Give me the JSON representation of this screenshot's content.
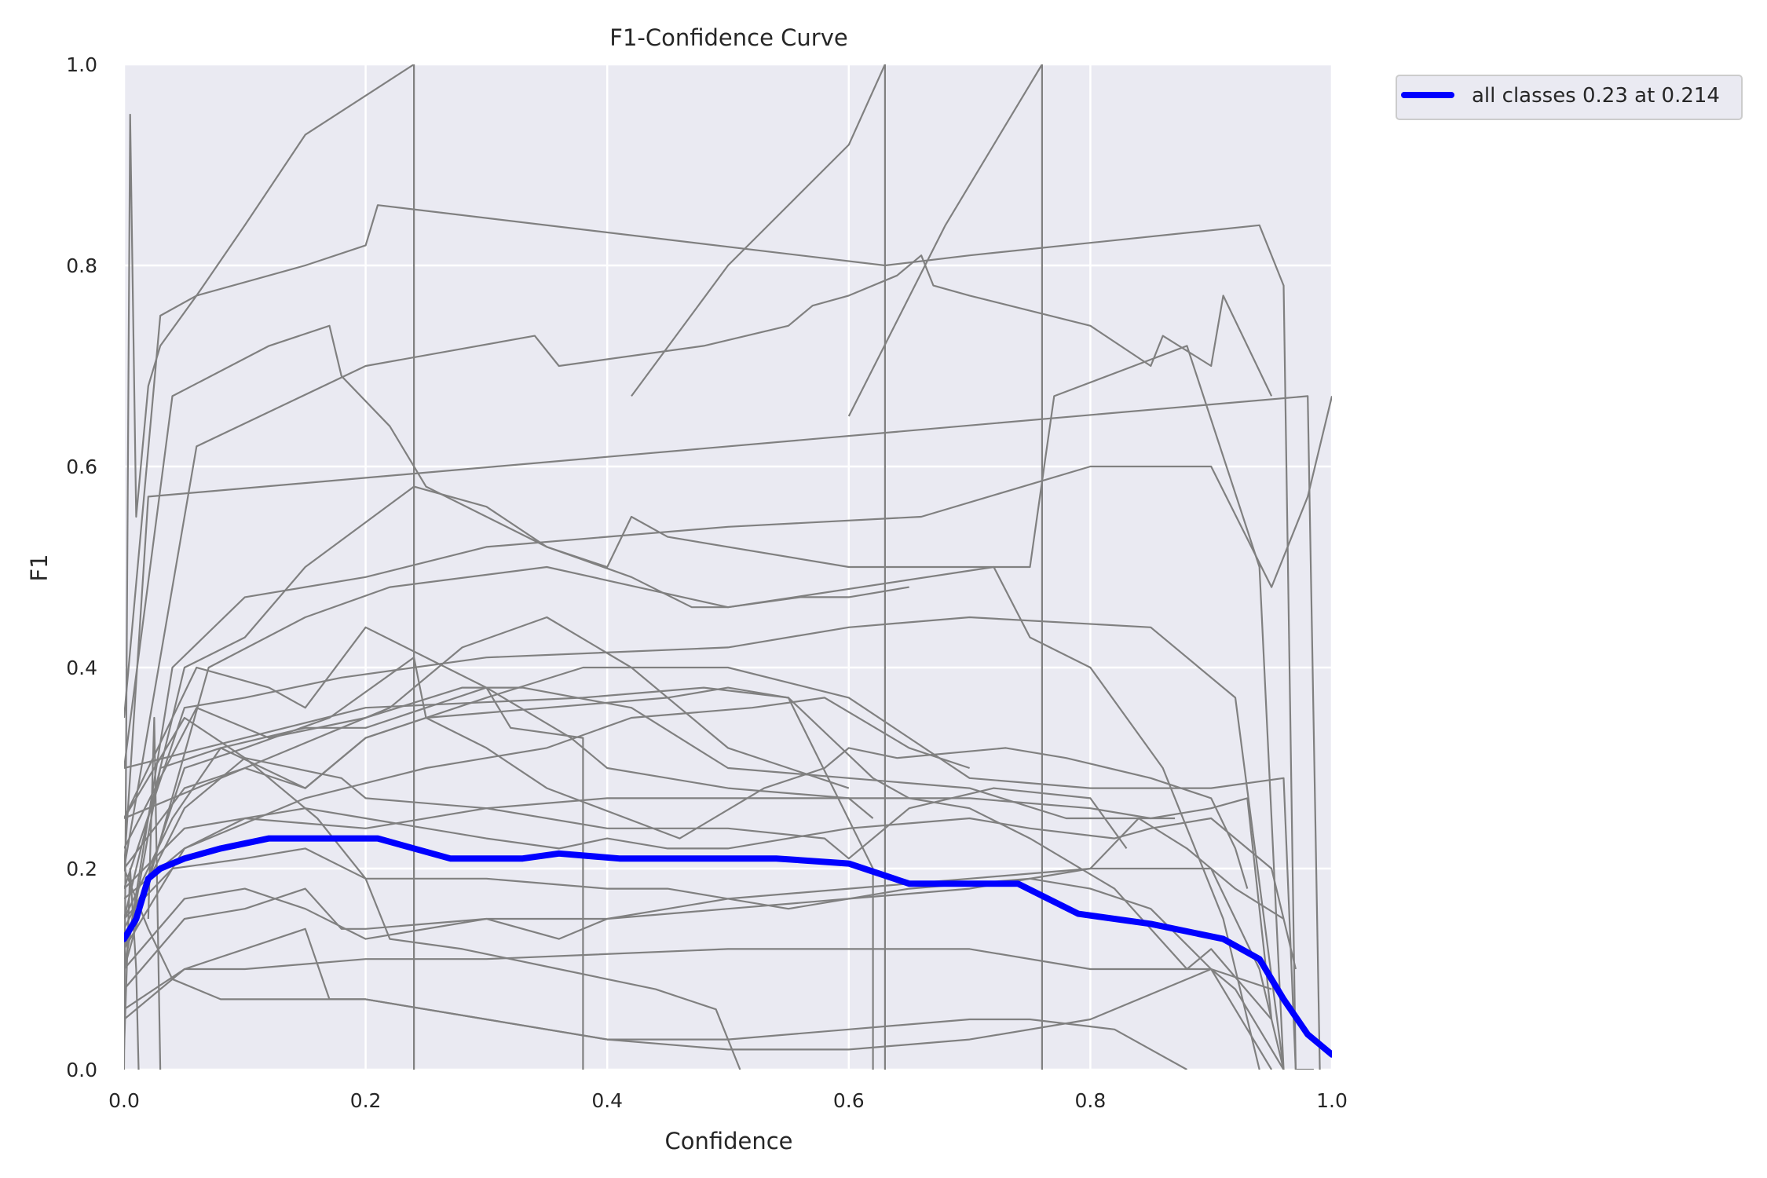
{
  "chart_data": {
    "type": "line",
    "title": "F1-Confidence Curve",
    "xlabel": "Confidence",
    "ylabel": "F1",
    "xlim": [
      0.0,
      1.0
    ],
    "ylim": [
      0.0,
      1.0
    ],
    "x_ticks": [
      "0.0",
      "0.2",
      "0.4",
      "0.6",
      "0.8",
      "1.0"
    ],
    "y_ticks": [
      "0.0",
      "0.2",
      "0.4",
      "0.6",
      "0.8",
      "1.0"
    ],
    "grid": true,
    "legend_position": "outside-top-right",
    "colors": {
      "class_curves": "#808080",
      "all_classes": "#0000ff",
      "plot_background": "#eaeaf2",
      "grid": "#ffffff"
    },
    "series": [
      {
        "name": "all classes 0.23 at 0.214",
        "emphasis": true,
        "x": [
          0.0,
          0.01,
          0.02,
          0.03,
          0.05,
          0.08,
          0.12,
          0.15,
          0.21,
          0.27,
          0.33,
          0.36,
          0.41,
          0.46,
          0.51,
          0.54,
          0.6,
          0.65,
          0.7,
          0.74,
          0.79,
          0.85,
          0.91,
          0.94,
          0.96,
          0.98,
          1.0
        ],
        "values": [
          0.13,
          0.15,
          0.19,
          0.2,
          0.21,
          0.22,
          0.23,
          0.23,
          0.23,
          0.21,
          0.21,
          0.215,
          0.21,
          0.21,
          0.21,
          0.21,
          0.205,
          0.185,
          0.185,
          0.185,
          0.155,
          0.145,
          0.13,
          0.11,
          0.07,
          0.035,
          0.015
        ]
      },
      {
        "x": [
          0.0,
          0.005,
          0.01,
          0.02,
          0.03,
          0.06,
          0.1,
          0.15,
          0.24
        ],
        "values": [
          0.0,
          0.95,
          0.55,
          0.68,
          0.72,
          0.77,
          0.84,
          0.93,
          1.0
        ]
      },
      {
        "x": [
          0.24,
          0.24
        ],
        "values": [
          1.0,
          0.0
        ]
      },
      {
        "x": [
          0.0,
          0.03,
          0.06,
          0.15,
          0.2,
          0.21,
          0.63,
          0.7,
          0.94,
          0.96,
          0.97,
          0.985
        ],
        "values": [
          0.35,
          0.75,
          0.77,
          0.8,
          0.82,
          0.86,
          0.8,
          0.81,
          0.84,
          0.78,
          0.0,
          0.0
        ]
      },
      {
        "x": [
          0.0,
          0.04,
          0.12,
          0.17,
          0.18,
          0.22,
          0.25,
          0.3,
          0.35,
          0.42,
          0.47,
          0.5,
          0.56,
          0.6,
          0.65
        ],
        "values": [
          0.3,
          0.67,
          0.72,
          0.74,
          0.69,
          0.64,
          0.58,
          0.55,
          0.52,
          0.49,
          0.46,
          0.46,
          0.47,
          0.47,
          0.48
        ]
      },
      {
        "x": [
          0.0,
          0.06,
          0.2,
          0.34,
          0.36,
          0.48,
          0.55,
          0.57,
          0.6,
          0.64,
          0.66,
          0.67,
          0.7,
          0.8,
          0.85,
          0.86,
          0.9,
          0.91,
          0.95
        ],
        "values": [
          0.2,
          0.62,
          0.7,
          0.73,
          0.7,
          0.72,
          0.74,
          0.76,
          0.77,
          0.79,
          0.81,
          0.78,
          0.77,
          0.74,
          0.7,
          0.73,
          0.7,
          0.77,
          0.67
        ]
      },
      {
        "x": [
          0.42,
          0.5,
          0.6,
          0.63
        ],
        "values": [
          0.67,
          0.8,
          0.92,
          1.0
        ]
      },
      {
        "x": [
          0.63,
          0.63
        ],
        "values": [
          1.0,
          0.0
        ]
      },
      {
        "x": [
          0.6,
          0.68,
          0.76
        ],
        "values": [
          0.65,
          0.84,
          1.0
        ]
      },
      {
        "x": [
          0.76,
          0.76
        ],
        "values": [
          1.0,
          0.0
        ]
      },
      {
        "x": [
          0.0,
          0.02,
          0.98,
          0.99
        ],
        "values": [
          0.2,
          0.57,
          0.67,
          0.0
        ]
      },
      {
        "x": [
          0.0,
          0.05,
          0.1,
          0.15,
          0.24,
          0.3,
          0.35,
          0.4,
          0.42,
          0.45,
          0.6,
          0.75,
          0.77,
          0.88,
          0.94,
          0.96
        ],
        "values": [
          0.15,
          0.4,
          0.43,
          0.5,
          0.58,
          0.56,
          0.52,
          0.5,
          0.55,
          0.53,
          0.5,
          0.5,
          0.67,
          0.72,
          0.5,
          0.0
        ]
      },
      {
        "x": [
          0.0,
          0.04,
          0.1,
          0.2,
          0.3,
          0.5,
          0.66,
          0.8,
          0.9,
          0.95,
          0.98,
          1.0
        ],
        "values": [
          0.1,
          0.4,
          0.47,
          0.49,
          0.52,
          0.54,
          0.55,
          0.6,
          0.6,
          0.48,
          0.57,
          0.67
        ]
      },
      {
        "x": [
          0.0,
          0.07,
          0.15,
          0.22,
          0.35,
          0.5,
          0.72,
          0.75,
          0.8,
          0.86,
          0.91,
          0.94
        ],
        "values": [
          0.1,
          0.4,
          0.45,
          0.48,
          0.5,
          0.46,
          0.5,
          0.43,
          0.4,
          0.3,
          0.15,
          0.0
        ]
      },
      {
        "x": [
          0.0,
          0.06,
          0.12,
          0.15,
          0.2,
          0.3,
          0.37,
          0.4,
          0.5,
          0.6,
          0.62
        ],
        "values": [
          0.25,
          0.4,
          0.38,
          0.36,
          0.44,
          0.38,
          0.33,
          0.3,
          0.28,
          0.27,
          0.25
        ]
      },
      {
        "x": [
          0.0,
          0.05,
          0.1,
          0.18,
          0.3,
          0.5,
          0.6,
          0.7,
          0.85,
          0.92,
          0.96
        ],
        "values": [
          0.18,
          0.36,
          0.37,
          0.39,
          0.41,
          0.42,
          0.44,
          0.45,
          0.44,
          0.37,
          0.0
        ]
      },
      {
        "x": [
          0.0,
          0.06,
          0.12,
          0.2,
          0.28,
          0.33,
          0.42,
          0.5,
          0.6,
          0.7,
          0.78,
          0.87
        ],
        "values": [
          0.22,
          0.36,
          0.33,
          0.35,
          0.38,
          0.38,
          0.36,
          0.3,
          0.29,
          0.28,
          0.25,
          0.25
        ]
      },
      {
        "x": [
          0.0,
          0.05,
          0.1,
          0.17,
          0.24,
          0.25,
          0.3,
          0.35,
          0.46,
          0.53,
          0.58,
          0.6,
          0.64,
          0.73,
          0.78,
          0.85,
          0.9,
          0.92,
          0.93
        ],
        "values": [
          0.12,
          0.3,
          0.32,
          0.35,
          0.41,
          0.35,
          0.32,
          0.28,
          0.23,
          0.28,
          0.3,
          0.32,
          0.31,
          0.32,
          0.31,
          0.29,
          0.27,
          0.22,
          0.18
        ]
      },
      {
        "x": [
          0.0,
          0.04,
          0.08,
          0.15,
          0.2,
          0.3,
          0.32,
          0.38,
          0.38
        ],
        "values": [
          0.15,
          0.25,
          0.32,
          0.34,
          0.34,
          0.38,
          0.34,
          0.33,
          0.0
        ]
      },
      {
        "x": [
          0.0,
          0.05,
          0.1,
          0.16,
          0.2,
          0.22,
          0.28,
          0.36,
          0.44,
          0.49,
          0.51
        ],
        "values": [
          0.25,
          0.35,
          0.31,
          0.25,
          0.19,
          0.13,
          0.12,
          0.1,
          0.08,
          0.06,
          0.0
        ]
      },
      {
        "x": [
          0.0,
          0.05,
          0.1,
          0.15,
          0.2,
          0.25,
          0.35,
          0.45,
          0.5,
          0.55,
          0.62,
          0.65,
          0.7,
          0.75,
          0.82,
          0.88,
          0.9,
          0.95
        ],
        "values": [
          0.2,
          0.28,
          0.3,
          0.28,
          0.33,
          0.35,
          0.36,
          0.37,
          0.38,
          0.37,
          0.29,
          0.27,
          0.26,
          0.23,
          0.18,
          0.1,
          0.12,
          0.05
        ]
      },
      {
        "x": [
          0.0,
          0.03,
          0.08,
          0.15,
          0.2,
          0.3,
          0.38,
          0.5,
          0.6,
          0.7,
          0.8,
          0.9,
          0.96,
          0.97
        ],
        "values": [
          0.1,
          0.3,
          0.32,
          0.28,
          0.33,
          0.37,
          0.4,
          0.4,
          0.37,
          0.29,
          0.28,
          0.28,
          0.29,
          0.0
        ]
      },
      {
        "x": [
          0.0,
          0.05,
          0.1,
          0.18,
          0.2,
          0.3,
          0.4,
          0.5,
          0.58,
          0.6,
          0.65,
          0.72,
          0.8,
          0.83
        ],
        "values": [
          0.14,
          0.26,
          0.31,
          0.29,
          0.27,
          0.26,
          0.24,
          0.24,
          0.23,
          0.21,
          0.26,
          0.28,
          0.27,
          0.22
        ]
      },
      {
        "x": [
          0.0,
          0.05,
          0.1,
          0.2,
          0.3,
          0.4,
          0.5,
          0.6,
          0.7,
          0.8,
          0.85,
          0.9,
          0.93,
          0.95
        ],
        "values": [
          0.12,
          0.22,
          0.25,
          0.24,
          0.26,
          0.27,
          0.27,
          0.27,
          0.27,
          0.26,
          0.25,
          0.26,
          0.27,
          0.05
        ]
      },
      {
        "x": [
          0.0,
          0.05,
          0.1,
          0.15,
          0.2,
          0.3,
          0.36,
          0.4,
          0.45,
          0.5,
          0.55,
          0.6,
          0.7,
          0.75,
          0.82,
          0.85,
          0.9,
          0.95,
          0.97
        ],
        "values": [
          0.18,
          0.24,
          0.25,
          0.26,
          0.25,
          0.23,
          0.22,
          0.23,
          0.22,
          0.22,
          0.23,
          0.24,
          0.25,
          0.24,
          0.23,
          0.24,
          0.25,
          0.2,
          0.1
        ]
      },
      {
        "x": [
          0.0,
          0.04,
          0.1,
          0.15,
          0.2,
          0.3,
          0.4,
          0.45,
          0.5,
          0.55,
          0.6,
          0.65,
          0.75,
          0.8,
          0.85,
          0.9,
          0.92,
          0.96
        ],
        "values": [
          0.15,
          0.2,
          0.21,
          0.22,
          0.19,
          0.19,
          0.18,
          0.18,
          0.17,
          0.16,
          0.17,
          0.18,
          0.19,
          0.18,
          0.16,
          0.1,
          0.08,
          0.0
        ]
      },
      {
        "x": [
          0.0,
          0.05,
          0.1,
          0.15,
          0.2,
          0.3,
          0.4,
          0.5,
          0.6,
          0.7,
          0.8,
          0.84,
          0.88,
          0.92,
          0.96
        ],
        "values": [
          0.1,
          0.17,
          0.18,
          0.16,
          0.13,
          0.15,
          0.15,
          0.16,
          0.17,
          0.18,
          0.2,
          0.25,
          0.22,
          0.18,
          0.15
        ]
      },
      {
        "x": [
          0.0,
          0.05,
          0.1,
          0.15,
          0.18,
          0.2,
          0.3,
          0.36,
          0.4,
          0.5,
          0.6,
          0.7,
          0.8,
          0.85,
          0.9,
          0.92,
          0.94,
          0.96
        ],
        "values": [
          0.08,
          0.15,
          0.16,
          0.18,
          0.14,
          0.14,
          0.15,
          0.13,
          0.15,
          0.17,
          0.18,
          0.19,
          0.2,
          0.2,
          0.2,
          0.15,
          0.1,
          0.0
        ]
      },
      {
        "x": [
          0.0,
          0.05,
          0.1,
          0.15,
          0.17,
          0.2,
          0.3,
          0.4,
          0.5,
          0.6,
          0.7,
          0.8,
          0.9,
          0.95
        ],
        "values": [
          0.05,
          0.1,
          0.12,
          0.14,
          0.07,
          0.07,
          0.05,
          0.03,
          0.02,
          0.02,
          0.03,
          0.05,
          0.1,
          0.08
        ]
      },
      {
        "x": [
          0.0,
          0.05,
          0.1,
          0.2,
          0.3,
          0.5,
          0.7,
          0.8,
          0.9,
          0.95
        ],
        "values": [
          0.06,
          0.1,
          0.1,
          0.11,
          0.11,
          0.12,
          0.12,
          0.1,
          0.1,
          0.0
        ]
      },
      {
        "x": [
          0.0,
          0.02,
          0.04,
          0.08,
          0.15,
          0.2,
          0.25,
          0.3,
          0.35,
          0.4,
          0.5,
          0.6,
          0.7,
          0.75,
          0.82,
          0.88
        ],
        "values": [
          0.2,
          0.14,
          0.09,
          0.07,
          0.07,
          0.07,
          0.06,
          0.05,
          0.04,
          0.03,
          0.03,
          0.04,
          0.05,
          0.05,
          0.04,
          0.0
        ]
      },
      {
        "x": [
          0.0,
          0.1,
          0.2,
          0.38,
          0.48,
          0.55,
          0.62,
          0.62
        ],
        "values": [
          0.3,
          0.33,
          0.36,
          0.37,
          0.38,
          0.37,
          0.2,
          0.0
        ]
      },
      {
        "x": [
          0.0,
          0.1,
          0.22,
          0.28,
          0.35,
          0.42,
          0.5,
          0.55,
          0.6
        ],
        "values": [
          0.25,
          0.3,
          0.36,
          0.42,
          0.45,
          0.4,
          0.32,
          0.3,
          0.28
        ]
      },
      {
        "x": [
          0.0,
          0.05,
          0.15,
          0.25,
          0.35,
          0.42,
          0.52,
          0.58,
          0.65,
          0.7
        ],
        "values": [
          0.17,
          0.22,
          0.27,
          0.3,
          0.32,
          0.35,
          0.36,
          0.37,
          0.32,
          0.3
        ]
      },
      {
        "x": [
          0.0,
          0.005,
          0.01,
          0.012
        ],
        "values": [
          0.02,
          0.2,
          0.1,
          0.0
        ]
      },
      {
        "x": [
          0.02,
          0.025,
          0.03
        ],
        "values": [
          0.15,
          0.35,
          0.0
        ]
      }
    ]
  },
  "legend": {
    "label": "all classes 0.23 at 0.214"
  }
}
